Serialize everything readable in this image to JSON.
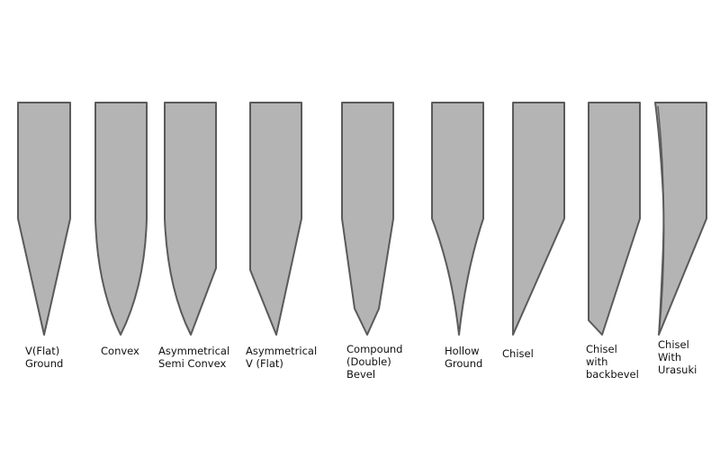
{
  "blade_color": "#b4b4b4",
  "outline_color": "#5a5a5a",
  "grinds": [
    {
      "id": "v-flat-ground",
      "label": "V(Flat)\nGround"
    },
    {
      "id": "convex",
      "label": "Convex"
    },
    {
      "id": "asymmetrical-semi-convex",
      "label": "Asymmetrical\nSemi Convex"
    },
    {
      "id": "asymmetrical-v-flat",
      "label": "Asymmetrical\nV (Flat)"
    },
    {
      "id": "compound-double-bevel",
      "label": "Compound\n(Double)\nBevel"
    },
    {
      "id": "hollow-ground",
      "label": "Hollow\nGround"
    },
    {
      "id": "chisel",
      "label": "Chisel"
    },
    {
      "id": "chisel-with-backbevel",
      "label": "Chisel\nwith\nbackbevel"
    },
    {
      "id": "chisel-with-urasuki",
      "label": "Chisel\nWith\nUrasuki"
    }
  ]
}
